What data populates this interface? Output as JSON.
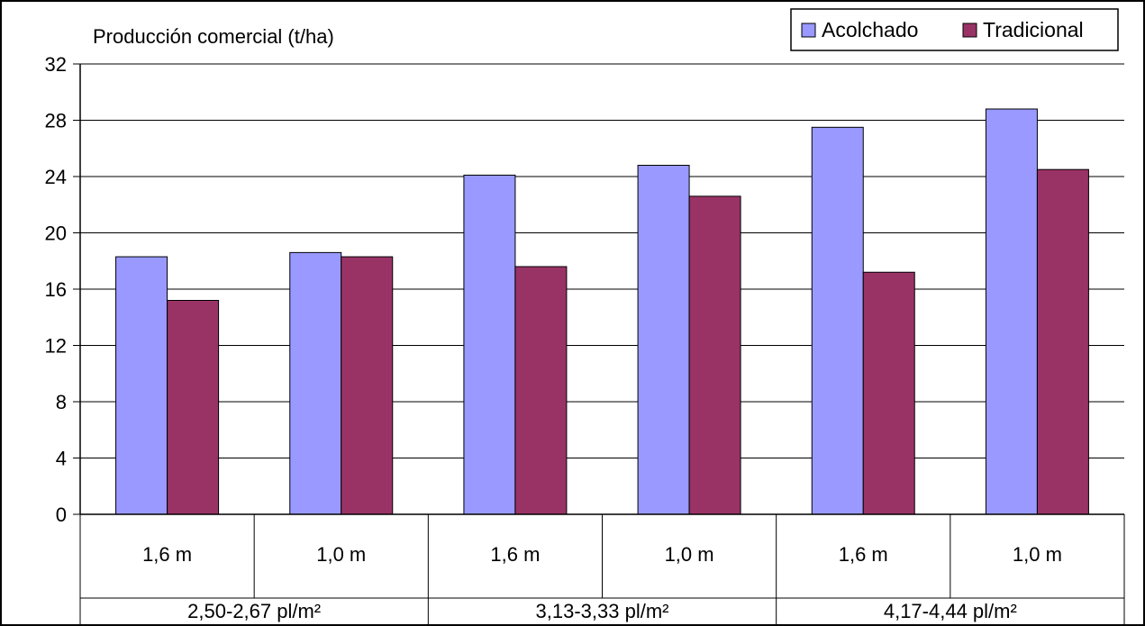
{
  "chart_data": {
    "type": "bar",
    "title": "",
    "ylabel": "Producción comercial (t/ha)",
    "xlabel": "",
    "ylim": [
      0,
      32
    ],
    "yticks": [
      0,
      4,
      8,
      12,
      16,
      20,
      24,
      28,
      32
    ],
    "grid": true,
    "legend_position": "top-right",
    "categories": [
      "1,6 m",
      "1,0 m",
      "1,6 m",
      "1,0 m",
      "1,6 m",
      "1,0 m"
    ],
    "groups": [
      "2,50-2,67 pl/m²",
      "3,13-3,33 pl/m²",
      "4,17-4,44 pl/m²"
    ],
    "series": [
      {
        "name": "Acolchado",
        "color": "#9999FF",
        "values": [
          18.3,
          18.6,
          24.1,
          24.8,
          27.5,
          28.8
        ]
      },
      {
        "name": "Tradicional",
        "color": "#993366",
        "values": [
          15.2,
          18.3,
          17.6,
          22.6,
          17.2,
          24.5
        ]
      }
    ]
  }
}
